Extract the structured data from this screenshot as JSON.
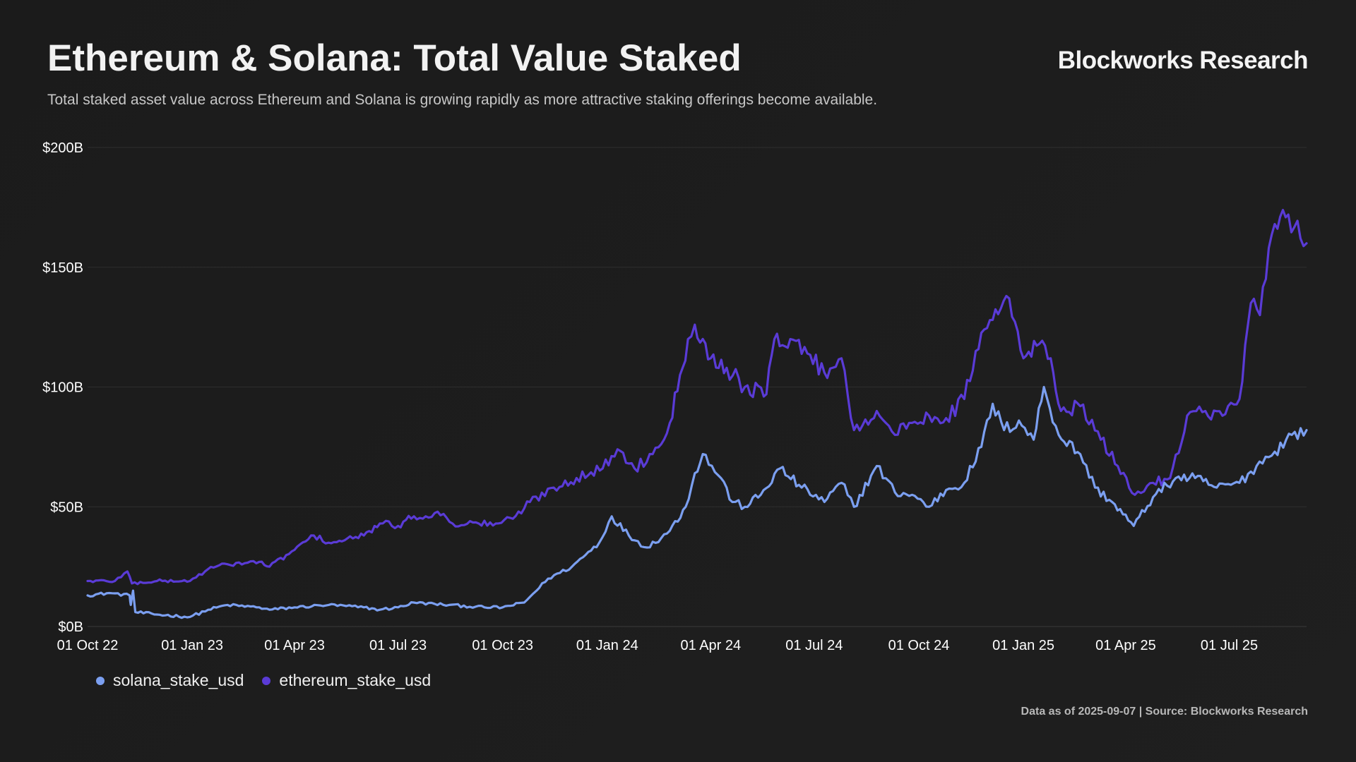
{
  "header": {
    "title": "Ethereum & Solana: Total Value Staked",
    "subtitle": "Total staked asset value across Ethereum and Solana is growing rapidly as more attractive staking offerings become available.",
    "brand": "Blockworks Research"
  },
  "footer": {
    "note": "Data as of 2025-09-07 | Source: Blockworks Research"
  },
  "colors": {
    "background": "#1c1c1c",
    "solana": "#7b9ff0",
    "ethereum": "#5a3bd6",
    "grid": "#2e2e2e",
    "text": "#ffffff"
  },
  "chart_data": {
    "type": "line",
    "title": "Ethereum & Solana: Total Value Staked",
    "xlabel": "",
    "ylabel": "",
    "ylim": [
      0,
      200
    ],
    "y_unit": "$B",
    "y_ticks": [
      "$0B",
      "$50B",
      "$100B",
      "$150B",
      "$200B"
    ],
    "y_tick_values": [
      0,
      50,
      100,
      150,
      200
    ],
    "x_range": [
      "2022-10-01",
      "2025-09-07"
    ],
    "x_ticks": [
      "01 Oct 22",
      "01 Jan 23",
      "01 Apr 23",
      "01 Jul 23",
      "01 Oct 23",
      "01 Jan 24",
      "01 Apr 24",
      "01 Jul 24",
      "01 Oct 24",
      "01 Jan 25",
      "01 Apr 25",
      "01 Jul 25"
    ],
    "x_tick_dates": [
      "2022-10-01",
      "2023-01-01",
      "2023-04-01",
      "2023-07-01",
      "2023-10-01",
      "2024-01-01",
      "2024-04-01",
      "2024-07-01",
      "2024-10-01",
      "2025-01-01",
      "2025-04-01",
      "2025-07-01"
    ],
    "grid": true,
    "legend_position": "bottom-left",
    "series": [
      {
        "name": "solana_stake_usd",
        "points": [
          [
            "2022-10-01",
            13
          ],
          [
            "2022-10-20",
            14
          ],
          [
            "2022-11-07",
            13
          ],
          [
            "2022-11-08",
            9
          ],
          [
            "2022-11-10",
            15
          ],
          [
            "2022-11-12",
            6
          ],
          [
            "2022-12-01",
            5
          ],
          [
            "2022-12-30",
            4
          ],
          [
            "2023-01-15",
            7
          ],
          [
            "2023-02-01",
            9
          ],
          [
            "2023-03-01",
            8
          ],
          [
            "2023-03-10",
            7
          ],
          [
            "2023-04-01",
            8
          ],
          [
            "2023-05-01",
            9
          ],
          [
            "2023-06-01",
            8
          ],
          [
            "2023-06-15",
            7
          ],
          [
            "2023-07-01",
            8
          ],
          [
            "2023-07-15",
            10
          ],
          [
            "2023-08-15",
            9
          ],
          [
            "2023-09-15",
            8
          ],
          [
            "2023-10-01",
            8
          ],
          [
            "2023-10-20",
            10
          ],
          [
            "2023-11-10",
            20
          ],
          [
            "2023-12-01",
            25
          ],
          [
            "2023-12-25",
            35
          ],
          [
            "2024-01-05",
            46
          ],
          [
            "2024-01-20",
            38
          ],
          [
            "2024-02-05",
            33
          ],
          [
            "2024-02-25",
            40
          ],
          [
            "2024-03-10",
            50
          ],
          [
            "2024-03-18",
            64
          ],
          [
            "2024-03-25",
            72
          ],
          [
            "2024-04-10",
            62
          ],
          [
            "2024-04-20",
            52
          ],
          [
            "2024-05-01",
            50
          ],
          [
            "2024-05-15",
            55
          ],
          [
            "2024-06-01",
            66
          ],
          [
            "2024-06-20",
            58
          ],
          [
            "2024-07-10",
            52
          ],
          [
            "2024-07-25",
            60
          ],
          [
            "2024-08-05",
            50
          ],
          [
            "2024-08-25",
            67
          ],
          [
            "2024-09-10",
            56
          ],
          [
            "2024-09-25",
            55
          ],
          [
            "2024-10-10",
            50
          ],
          [
            "2024-10-25",
            57
          ],
          [
            "2024-11-10",
            60
          ],
          [
            "2024-11-25",
            75
          ],
          [
            "2024-12-05",
            93
          ],
          [
            "2024-12-15",
            82
          ],
          [
            "2024-12-28",
            86
          ],
          [
            "2025-01-10",
            78
          ],
          [
            "2025-01-19",
            100
          ],
          [
            "2025-02-01",
            80
          ],
          [
            "2025-02-20",
            72
          ],
          [
            "2025-03-05",
            58
          ],
          [
            "2025-03-20",
            52
          ],
          [
            "2025-04-08",
            42
          ],
          [
            "2025-04-25",
            54
          ],
          [
            "2025-05-15",
            62
          ],
          [
            "2025-06-01",
            62
          ],
          [
            "2025-06-20",
            58
          ],
          [
            "2025-07-10",
            60
          ],
          [
            "2025-07-25",
            67
          ],
          [
            "2025-08-10",
            73
          ],
          [
            "2025-08-25",
            80
          ],
          [
            "2025-09-07",
            82
          ]
        ]
      },
      {
        "name": "ethereum_stake_usd",
        "points": [
          [
            "2022-10-01",
            19
          ],
          [
            "2022-10-25",
            19
          ],
          [
            "2022-11-05",
            23
          ],
          [
            "2022-11-09",
            18
          ],
          [
            "2022-12-01",
            19
          ],
          [
            "2022-12-30",
            19
          ],
          [
            "2023-01-15",
            24
          ],
          [
            "2023-02-01",
            26
          ],
          [
            "2023-03-01",
            27
          ],
          [
            "2023-03-10",
            25
          ],
          [
            "2023-04-01",
            32
          ],
          [
            "2023-04-18",
            38
          ],
          [
            "2023-05-01",
            35
          ],
          [
            "2023-05-15",
            36
          ],
          [
            "2023-06-01",
            38
          ],
          [
            "2023-06-15",
            43
          ],
          [
            "2023-07-01",
            42
          ],
          [
            "2023-07-15",
            46
          ],
          [
            "2023-08-10",
            47
          ],
          [
            "2023-08-18",
            43
          ],
          [
            "2023-09-10",
            43
          ],
          [
            "2023-09-25",
            43
          ],
          [
            "2023-10-10",
            45
          ],
          [
            "2023-10-25",
            52
          ],
          [
            "2023-11-15",
            58
          ],
          [
            "2023-12-05",
            62
          ],
          [
            "2023-12-28",
            66
          ],
          [
            "2024-01-10",
            74
          ],
          [
            "2024-01-25",
            66
          ],
          [
            "2024-02-10",
            72
          ],
          [
            "2024-02-25",
            85
          ],
          [
            "2024-03-05",
            105
          ],
          [
            "2024-03-12",
            120
          ],
          [
            "2024-03-18",
            126
          ],
          [
            "2024-04-01",
            112
          ],
          [
            "2024-04-15",
            108
          ],
          [
            "2024-05-01",
            100
          ],
          [
            "2024-05-20",
            97
          ],
          [
            "2024-05-27",
            120
          ],
          [
            "2024-06-10",
            120
          ],
          [
            "2024-06-25",
            114
          ],
          [
            "2024-07-10",
            106
          ],
          [
            "2024-07-25",
            112
          ],
          [
            "2024-08-05",
            82
          ],
          [
            "2024-08-25",
            90
          ],
          [
            "2024-09-10",
            80
          ],
          [
            "2024-09-25",
            85
          ],
          [
            "2024-10-10",
            88
          ],
          [
            "2024-10-25",
            87
          ],
          [
            "2024-11-10",
            95
          ],
          [
            "2024-11-20",
            115
          ],
          [
            "2024-12-05",
            128
          ],
          [
            "2024-12-17",
            138
          ],
          [
            "2025-01-01",
            112
          ],
          [
            "2025-01-15",
            118
          ],
          [
            "2025-01-25",
            112
          ],
          [
            "2025-02-03",
            90
          ],
          [
            "2025-02-20",
            92
          ],
          [
            "2025-03-10",
            78
          ],
          [
            "2025-03-25",
            67
          ],
          [
            "2025-04-09",
            55
          ],
          [
            "2025-04-25",
            60
          ],
          [
            "2025-05-10",
            62
          ],
          [
            "2025-05-25",
            88
          ],
          [
            "2025-06-10",
            90
          ],
          [
            "2025-06-25",
            88
          ],
          [
            "2025-07-10",
            95
          ],
          [
            "2025-07-20",
            135
          ],
          [
            "2025-07-28",
            130
          ],
          [
            "2025-08-10",
            168
          ],
          [
            "2025-08-22",
            172
          ],
          [
            "2025-09-07",
            160
          ]
        ]
      }
    ]
  }
}
